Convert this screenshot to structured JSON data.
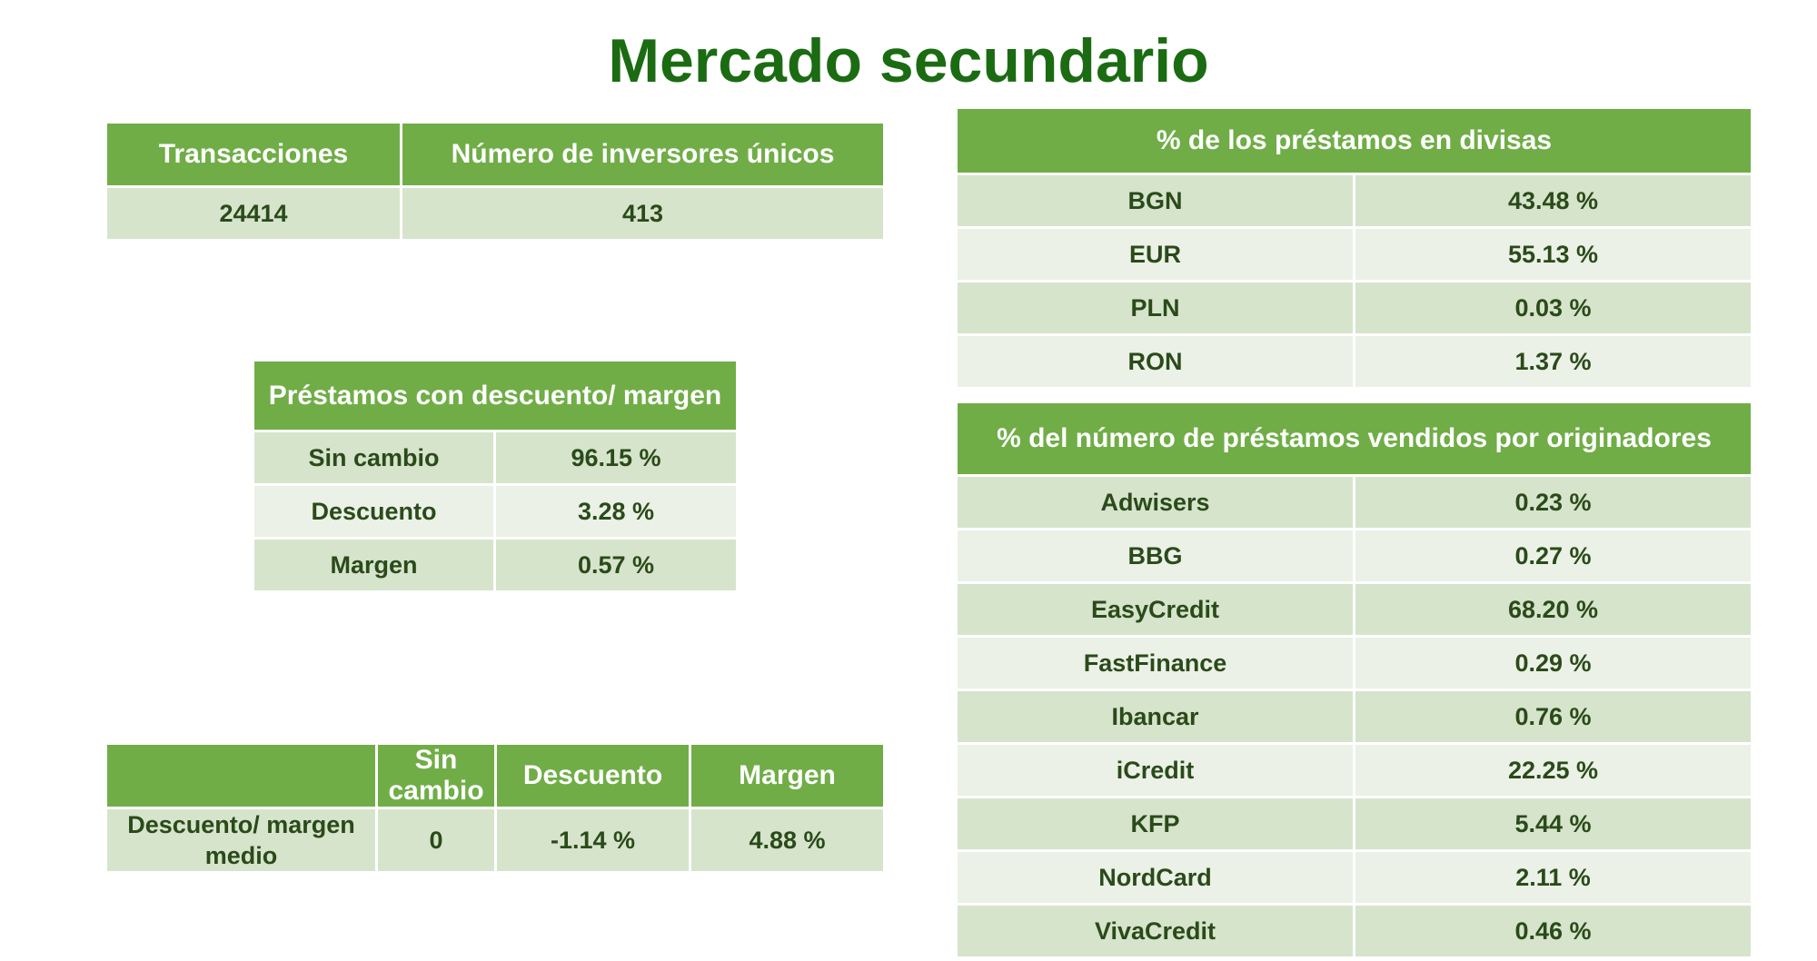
{
  "title": "Mercado secundario",
  "summary": {
    "headers": [
      "Transacciones",
      "Número de inversores únicos"
    ],
    "values": [
      "24414",
      "413"
    ]
  },
  "discount_margin": {
    "header": "Préstamos con descuento/ margen",
    "rows": [
      {
        "label": "Sin cambio",
        "value": "96.15 %"
      },
      {
        "label": "Descuento",
        "value": "3.28 %"
      },
      {
        "label": "Margen",
        "value": "0.57 %"
      }
    ]
  },
  "average": {
    "headers": [
      "",
      "Sin cambio",
      "Descuento",
      "Margen"
    ],
    "row": [
      "Descuento/ margen medio",
      "0",
      "-1.14 %",
      "4.88 %"
    ]
  },
  "currencies": {
    "header": "% de los préstamos en divisas",
    "rows": [
      {
        "label": "BGN",
        "value": "43.48 %"
      },
      {
        "label": "EUR",
        "value": "55.13 %"
      },
      {
        "label": "PLN",
        "value": "0.03 %"
      },
      {
        "label": "RON",
        "value": "1.37 %"
      }
    ]
  },
  "originators": {
    "header": "% del número de préstamos vendidos por originadores",
    "rows": [
      {
        "label": "Adwisers",
        "value": "0.23 %"
      },
      {
        "label": "BBG",
        "value": "0.27 %"
      },
      {
        "label": "EasyCredit",
        "value": "68.20 %"
      },
      {
        "label": "FastFinance",
        "value": "0.29 %"
      },
      {
        "label": "Ibancar",
        "value": "0.76 %"
      },
      {
        "label": "iCredit",
        "value": "22.25 %"
      },
      {
        "label": "KFP",
        "value": "5.44 %"
      },
      {
        "label": "NordCard",
        "value": "2.11 %"
      },
      {
        "label": "VivaCredit",
        "value": "0.46 %"
      }
    ]
  },
  "colors": {
    "title": "#1b6b12",
    "header_bg": "#70ad47",
    "row_dark": "#d6e4cc",
    "row_light": "#ebf1e6",
    "cell_text": "#2b4a1a"
  }
}
